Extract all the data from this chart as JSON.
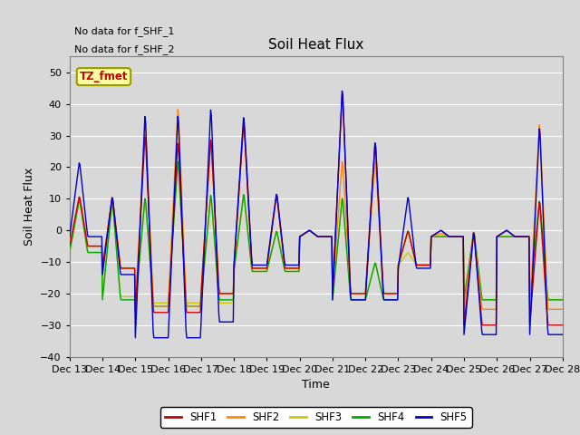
{
  "title": "Soil Heat Flux",
  "ylabel": "Soil Heat Flux",
  "xlabel": "Time",
  "ylim": [
    -40,
    55
  ],
  "yticks": [
    -40,
    -30,
    -20,
    -10,
    0,
    10,
    20,
    30,
    40,
    50
  ],
  "bg_color": "#d8d8d8",
  "plot_bg_color": "#d8d8d8",
  "annotations": [
    "No data for f_SHF_1",
    "No data for f_SHF_2"
  ],
  "box_label": "TZ_fmet",
  "legend_entries": [
    "SHF1",
    "SHF2",
    "SHF3",
    "SHF4",
    "SHF5"
  ],
  "legend_colors": [
    "#cc0000",
    "#ff8800",
    "#cccc00",
    "#00aa00",
    "#0000cc"
  ],
  "line_colors": {
    "SHF1": "#cc0000",
    "SHF2": "#ff8800",
    "SHF3": "#cccc00",
    "SHF4": "#00aa00",
    "SHF5": "#0000cc"
  },
  "xtick_labels": [
    "Dec 13",
    "Dec 14",
    "Dec 15",
    "Dec 16",
    "Dec 17",
    "Dec 18",
    "Dec 19",
    "Dec 20",
    "Dec 21",
    "Dec 22",
    "Dec 23",
    "Dec 24",
    "Dec 25",
    "Dec 26",
    "Dec 27",
    "Dec 28"
  ],
  "n_days": 16
}
